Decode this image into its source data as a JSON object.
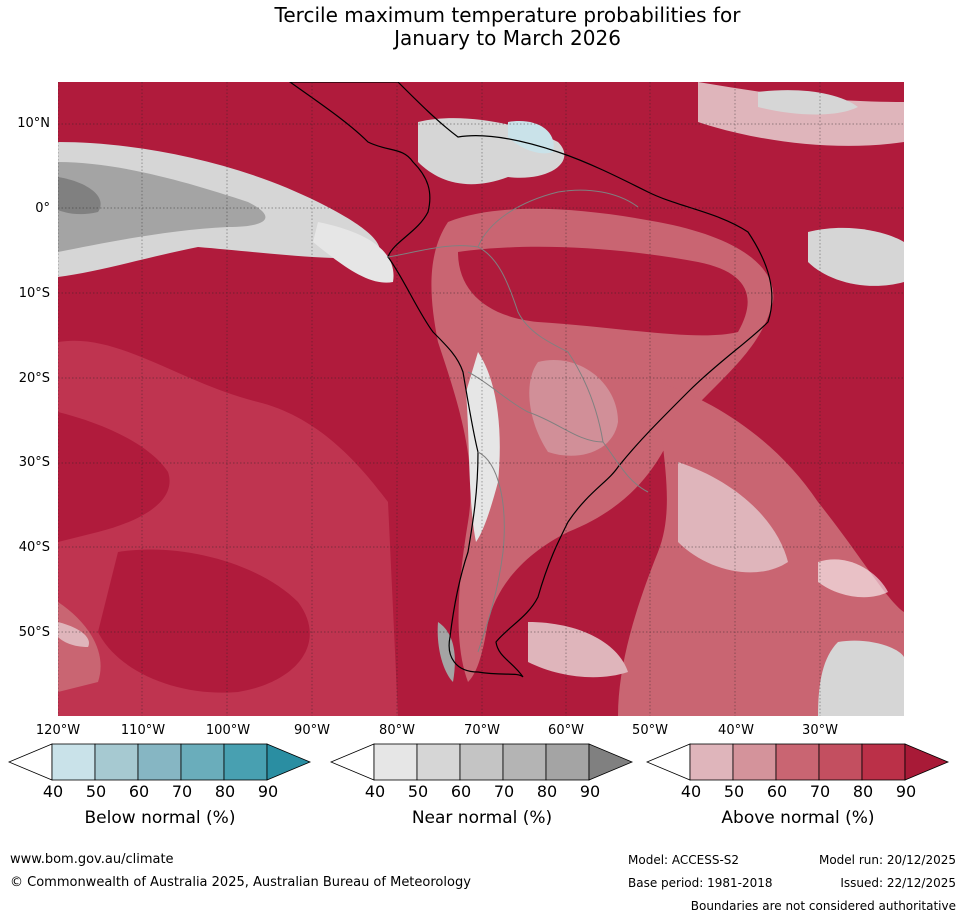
{
  "title_line1": "Tercile maximum temperature probabilities for",
  "title_line2": "January to March 2026",
  "map": {
    "lat_labels": [
      "10°N",
      "0°",
      "10°S",
      "20°S",
      "30°S",
      "40°S",
      "50°S"
    ],
    "lon_labels": [
      "120°W",
      "110°W",
      "100°W",
      "90°W",
      "80°W",
      "70°W",
      "60°W",
      "50°W",
      "40°W",
      "30°W"
    ],
    "colors": {
      "above_90": "#b01b3c",
      "above_80": "#bf3450",
      "above_70": "#c96572",
      "above_60": "#d18f98",
      "above_50": "#dfb5bb",
      "near": "#d6d6d6",
      "near_dark": "#a4a4a4",
      "below_light": "#c9e2e9"
    }
  },
  "legends": [
    {
      "title": "Below normal (%)",
      "ticks": [
        "40",
        "50",
        "60",
        "70",
        "80",
        "90"
      ],
      "colors": [
        "#ffffff",
        "#c9e2e9",
        "#a6c9d1",
        "#86b6c3",
        "#6aadbb",
        "#48a0b1",
        "#2a8ea2"
      ]
    },
    {
      "title": "Near normal (%)",
      "ticks": [
        "40",
        "50",
        "60",
        "70",
        "80",
        "90"
      ],
      "colors": [
        "#ffffff",
        "#e6e6e6",
        "#d6d6d6",
        "#c4c4c4",
        "#b4b4b4",
        "#a4a4a4",
        "#808080"
      ]
    },
    {
      "title": "Above normal (%)",
      "ticks": [
        "40",
        "50",
        "60",
        "70",
        "80",
        "90"
      ],
      "colors": [
        "#ffffff",
        "#dfb5bb",
        "#d4939b",
        "#c96572",
        "#c34f60",
        "#bb3048",
        "#a81a37"
      ]
    }
  ],
  "footer": {
    "website": "www.bom.gov.au/climate",
    "copyright": "© Commonwealth of Australia 2025, Australian Bureau of Meteorology",
    "model": "Model: ACCESS-S2",
    "base_period": "Base period: 1981-2018",
    "model_run": "Model run: 20/12/2025",
    "issued": "Issued: 22/12/2025",
    "boundaries_note": "Boundaries are not considered authoritative"
  }
}
